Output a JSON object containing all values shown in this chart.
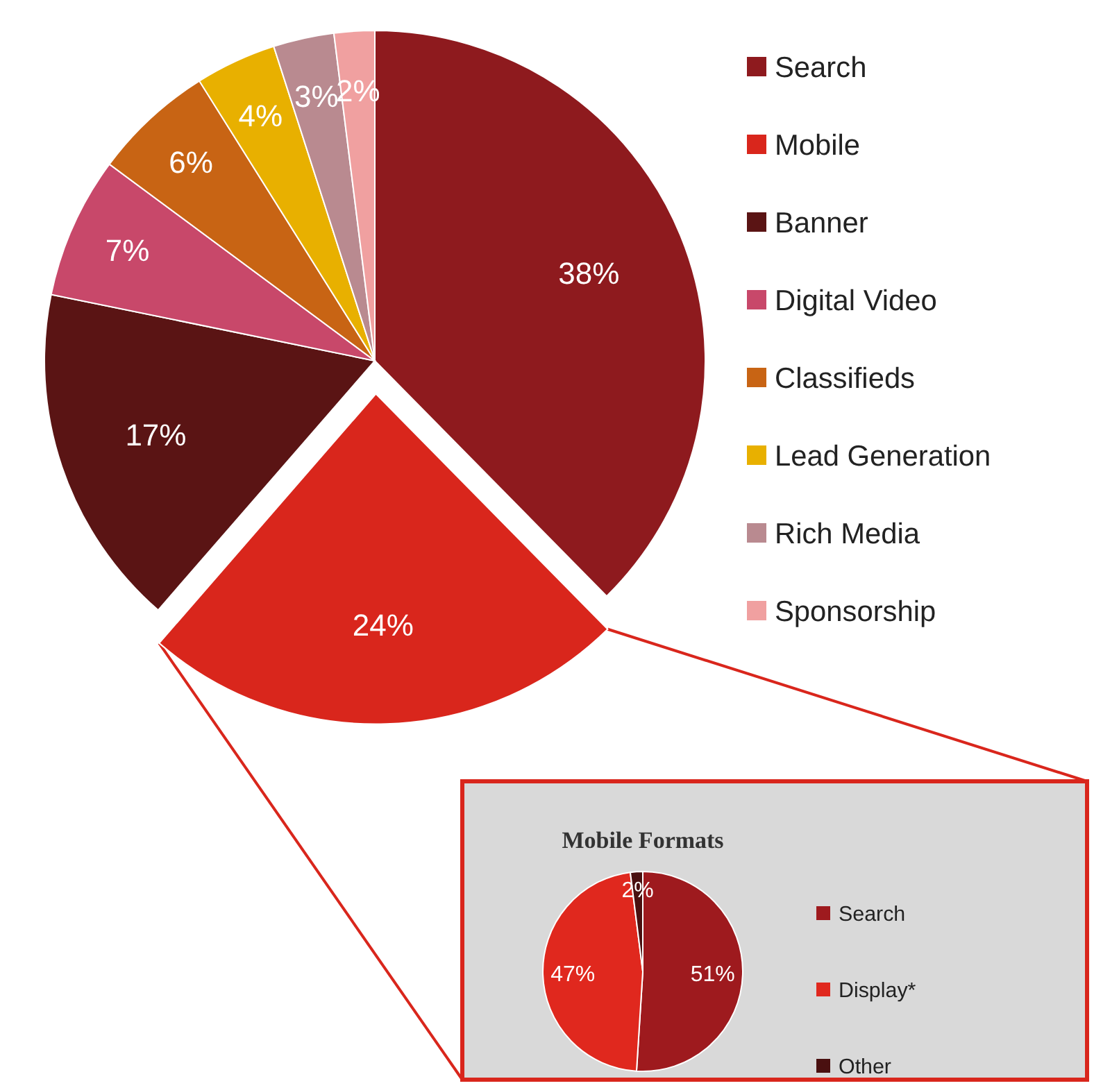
{
  "chart_data": [
    {
      "type": "pie",
      "categories": [
        "Search",
        "Mobile",
        "Banner",
        "Digital Video",
        "Classifieds",
        "Lead Generation",
        "Rich Media",
        "Sponsorship"
      ],
      "values": [
        38,
        24,
        17,
        7,
        6,
        4,
        3,
        2
      ],
      "value_labels": [
        "38%",
        "24%",
        "17%",
        "7%",
        "6%",
        "4%",
        "3%",
        "2%"
      ],
      "colors": [
        "#8e1a1e",
        "#d9261c",
        "#5a1414",
        "#c8486a",
        "#c86414",
        "#e8b000",
        "#b98a90",
        "#f0a0a0"
      ],
      "data_labels": true,
      "legend": "right"
    },
    {
      "type": "pie",
      "title": "Mobile Formats",
      "categories": [
        "Search",
        "Display*",
        "Other"
      ],
      "values": [
        51,
        47,
        2
      ],
      "value_labels": [
        "51%",
        "47%",
        "2%"
      ],
      "colors": [
        "#9e1a1e",
        "#e0281e",
        "#4a1010"
      ],
      "data_labels": true,
      "legend": "right"
    }
  ]
}
